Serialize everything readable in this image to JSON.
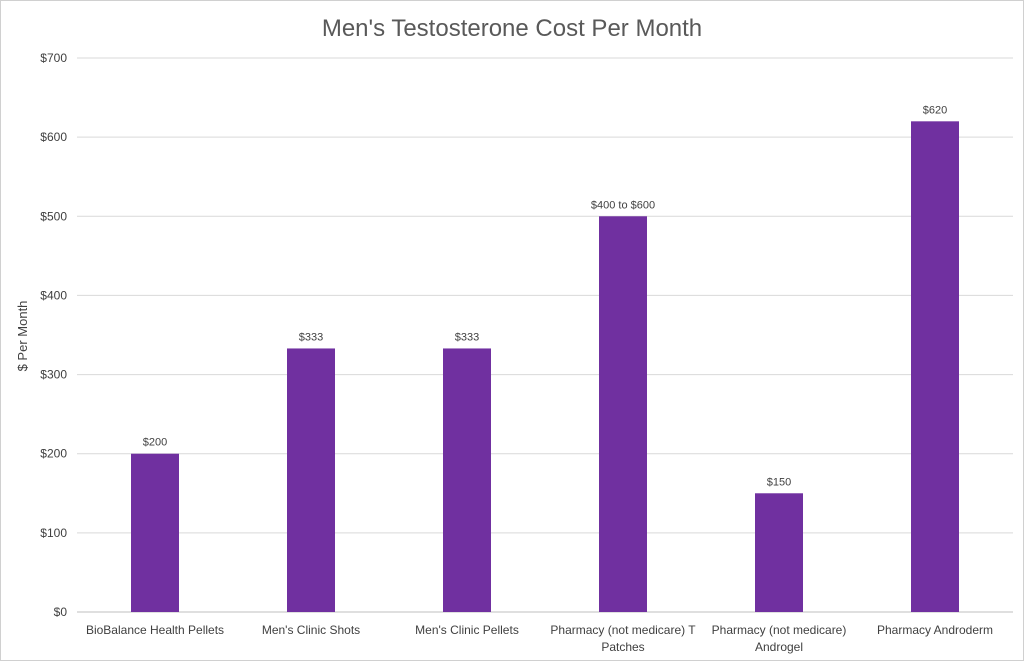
{
  "chart_data": {
    "type": "bar",
    "title": "Men's Testosterone Cost Per Month",
    "xlabel": "",
    "ylabel": "$ Per Month",
    "ylim": [
      0,
      700
    ],
    "y_ticks": [
      0,
      100,
      200,
      300,
      400,
      500,
      600,
      700
    ],
    "y_tick_labels": [
      "$0",
      "$100",
      "$200",
      "$300",
      "$400",
      "$500",
      "$600",
      "$700"
    ],
    "grid": true,
    "legend": "none",
    "bar_color": "#7030A0",
    "categories": [
      [
        "BioBalance Health Pellets"
      ],
      [
        "Men's Clinic Shots"
      ],
      [
        "Men's Clinic Pellets"
      ],
      [
        "Pharmacy (not medicare) T",
        "Patches"
      ],
      [
        "Pharmacy (not medicare)",
        "Androgel"
      ],
      [
        "Pharmacy Androderm"
      ]
    ],
    "values": [
      200,
      333,
      333,
      500,
      150,
      620
    ],
    "data_labels": [
      "$200",
      "$333",
      "$333",
      "$400 to $600",
      "$150",
      "$620"
    ]
  }
}
